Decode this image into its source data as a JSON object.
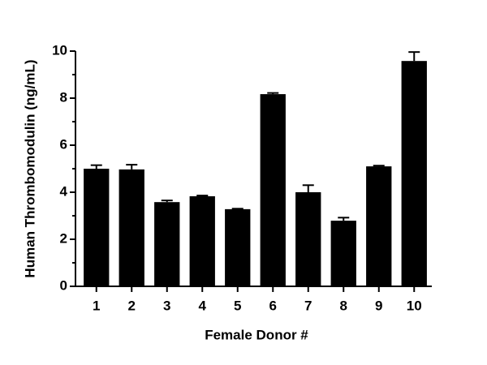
{
  "chart_data": {
    "type": "bar",
    "x_label": "Female Donor #",
    "y_label": "Human Thrombomodulin (ng/mL)",
    "categories": [
      "1",
      "2",
      "3",
      "4",
      "5",
      "6",
      "7",
      "8",
      "9",
      "10"
    ],
    "series": [
      {
        "color": "#000000",
        "values": [
          5.0,
          4.97,
          3.58,
          3.83,
          3.28,
          8.17,
          4.0,
          2.79,
          5.1,
          9.58
        ],
        "errors": [
          0.15,
          0.2,
          0.07,
          0.03,
          0.02,
          0.05,
          0.3,
          0.13,
          0.03,
          0.38
        ]
      }
    ],
    "ylim": [
      0,
      10
    ],
    "yticks": [
      0,
      2,
      4,
      6,
      8,
      10
    ],
    "yminor_ticks": [
      1,
      3,
      5,
      7,
      9
    ]
  }
}
